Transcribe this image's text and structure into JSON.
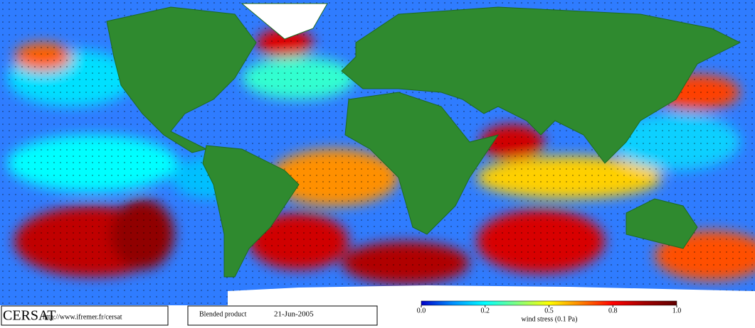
{
  "footer": {
    "logo": "CERSAT",
    "url": "http://www.ifremer.fr/cersat",
    "product": "Blended product",
    "date": "21-Jun-2005"
  },
  "colorbar": {
    "ticks": [
      {
        "value": 0,
        "label": "0.0"
      },
      0.2,
      0.5,
      0.8,
      {
        "value": 1,
        "label": "1.0"
      }
    ],
    "label": "wind stress (0.1 Pa)",
    "colors": [
      "#0000c8",
      "#0090ff",
      "#00ffff",
      "#80ff80",
      "#ffff00",
      "#ff8000",
      "#ff0000",
      "#a00000",
      "#600000"
    ]
  }
}
